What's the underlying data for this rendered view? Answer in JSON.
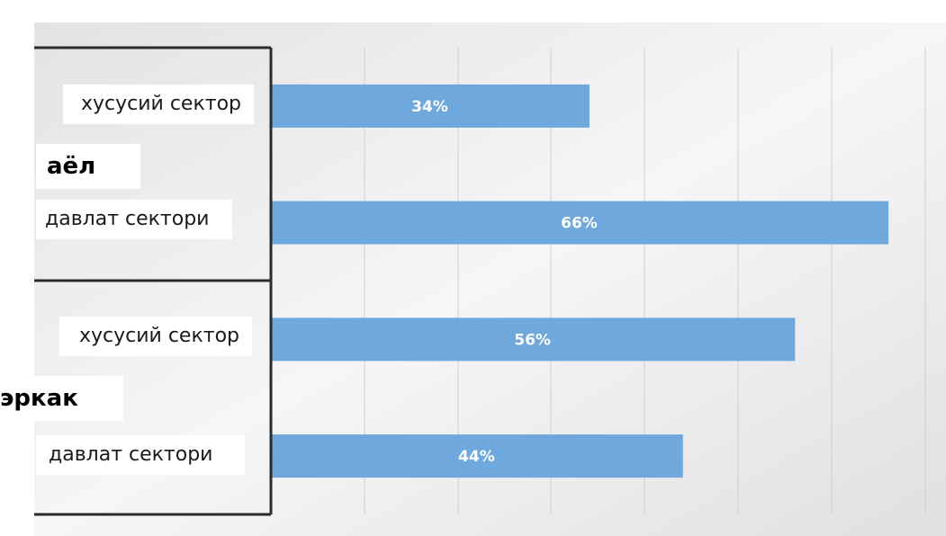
{
  "chart_data": {
    "type": "bar",
    "orientation": "horizontal",
    "grid": true,
    "xlim": [
      0,
      70
    ],
    "groups": [
      {
        "name": "аёл",
        "categories": [
          "хусусий сектор",
          "давлат сектори"
        ],
        "values": [
          34,
          66
        ],
        "value_labels": [
          "34%",
          "66%"
        ]
      },
      {
        "name": "эркак",
        "categories": [
          "хусусий сектор",
          "давлат сектори"
        ],
        "values": [
          56,
          44
        ],
        "value_labels": [
          "56%",
          "44%"
        ]
      }
    ],
    "colors": {
      "bar": "#6fa8dc",
      "data_label": "#ffffff",
      "gridline": "#cfcfcf",
      "axis": "#2b2b2b"
    }
  }
}
